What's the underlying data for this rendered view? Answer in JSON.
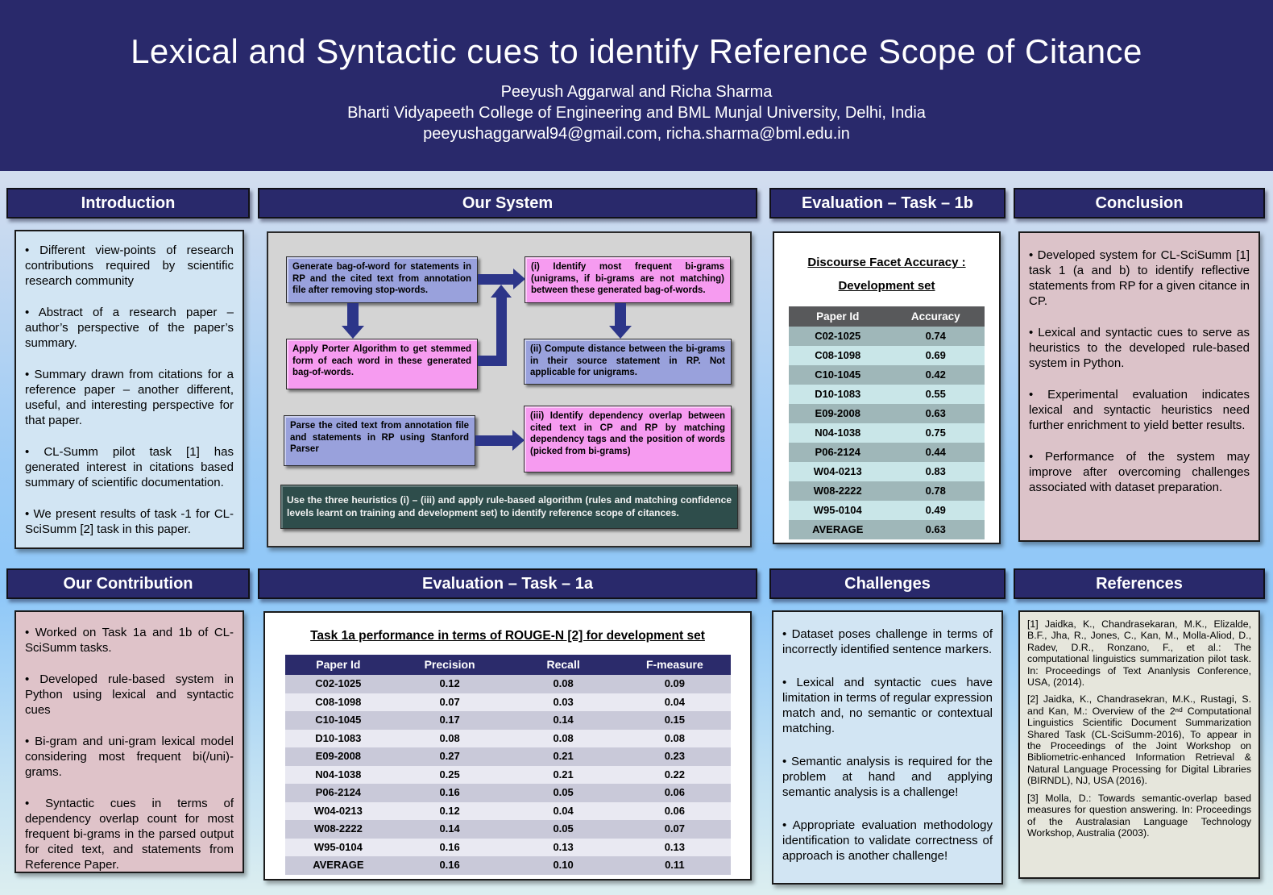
{
  "header": {
    "title": "Lexical and Syntactic cues to identify Reference Scope of Citance",
    "authors": "Peeyush Aggarwal  and Richa Sharma",
    "affiliation": "Bharti Vidyapeeth College of Engineering and  BML Munjal University, Delhi, India",
    "emails": "peeyushaggarwal94@gmail.com, richa.sharma@bml.edu.in"
  },
  "introduction": {
    "title": "Introduction",
    "bullets": [
      "• Different view-points of research contributions required by scientific research community",
      "• Abstract of a research paper – author’s perspective of the paper’s summary.",
      "• Summary drawn from citations for a reference paper – another different, useful, and interesting perspective for that paper.",
      "• CL-Summ pilot task [1] has generated interest in citations based summary of scientific documentation.",
      "• We present results of task -1 for CL-SciSumm [2] task in this paper."
    ]
  },
  "our_system": {
    "title": "Our System",
    "steps_left": [
      "Generate bag-of-word for statements in RP and the cited text from annotation file after removing stop-words.",
      "Apply Porter Algorithm to get stemmed form of each word in these generated bag-of-words.",
      "Parse the cited text from annotation file and statements in RP using Stanford Parser"
    ],
    "steps_right": [
      "(i) Identify most frequent bi-grams (unigrams, if bi-grams are not matching) between these generated bag-of-words.",
      "(ii) Compute distance between the bi-grams in their source statement in RP. Not applicable for unigrams.",
      "(iii) Identify dependency overlap between cited text in CP and RP by matching dependency tags and the position of words (picked from bi-grams)"
    ],
    "final_note": "Use the three heuristics (i) – (iii) and apply rule-based algorithm (rules and matching confidence levels learnt on training and development set) to identify reference scope of citances."
  },
  "evaluation_1b": {
    "title": "Evaluation – Task – 1b",
    "subtitle_line1": "Discourse Facet Accuracy :",
    "subtitle_line2": "Development set",
    "columns": [
      "Paper Id",
      "Accuracy"
    ],
    "rows": [
      {
        "id": "C02-1025",
        "accuracy": "0.74"
      },
      {
        "id": "C08-1098",
        "accuracy": "0.69"
      },
      {
        "id": "C10-1045",
        "accuracy": "0.42"
      },
      {
        "id": "D10-1083",
        "accuracy": "0.55"
      },
      {
        "id": "E09-2008",
        "accuracy": "0.63"
      },
      {
        "id": "N04-1038",
        "accuracy": "0.75"
      },
      {
        "id": "P06-2124",
        "accuracy": "0.44"
      },
      {
        "id": "W04-0213",
        "accuracy": "0.83"
      },
      {
        "id": "W08-2222",
        "accuracy": "0.78"
      },
      {
        "id": "W95-0104",
        "accuracy": "0.49"
      },
      {
        "id": "AVERAGE",
        "accuracy": "0.63"
      }
    ]
  },
  "conclusion": {
    "title": "Conclusion",
    "bullets": [
      "• Developed system for CL-SciSumm [1] task 1 (a and b) to identify reflective statements from RP for a given citance in CP.",
      "•  Lexical and syntactic cues to serve as heuristics to the developed rule-based system in Python.",
      "• Experimental evaluation indicates lexical and syntactic heuristics need further enrichment to yield better results.",
      "• Performance of the system may improve after overcoming challenges associated with dataset preparation."
    ]
  },
  "our_contribution": {
    "title": "Our Contribution",
    "bullets": [
      "• Worked on Task 1a and 1b of CL-SciSumm tasks.",
      "•  Developed rule-based system in Python using lexical and syntactic cues",
      "• Bi-gram and uni-gram lexical model considering most frequent bi(/uni)-grams.",
      "• Syntactic cues in terms of dependency overlap count for most frequent bi-grams in the parsed output for cited text, and  statements from Reference Paper."
    ]
  },
  "evaluation_1a": {
    "title": "Evaluation – Task – 1a",
    "table_title": "Task 1a performance in terms of ROUGE-N [2] for development set",
    "columns": [
      "Paper Id",
      "Precision",
      "Recall",
      "F-measure"
    ],
    "rows": [
      {
        "id": "C02-1025",
        "precision": "0.12",
        "recall": "0.08",
        "fmeasure": "0.09"
      },
      {
        "id": "C08-1098",
        "precision": "0.07",
        "recall": "0.03",
        "fmeasure": "0.04"
      },
      {
        "id": "C10-1045",
        "precision": "0.17",
        "recall": "0.14",
        "fmeasure": "0.15"
      },
      {
        "id": "D10-1083",
        "precision": "0.08",
        "recall": "0.08",
        "fmeasure": "0.08"
      },
      {
        "id": "E09-2008",
        "precision": "0.27",
        "recall": "0.21",
        "fmeasure": "0.23"
      },
      {
        "id": "N04-1038",
        "precision": "0.25",
        "recall": "0.21",
        "fmeasure": "0.22"
      },
      {
        "id": "P06-2124",
        "precision": "0.16",
        "recall": "0.05",
        "fmeasure": "0.06"
      },
      {
        "id": "W04-0213",
        "precision": "0.12",
        "recall": "0.04",
        "fmeasure": "0.06"
      },
      {
        "id": "W08-2222",
        "precision": "0.14",
        "recall": "0.05",
        "fmeasure": "0.07"
      },
      {
        "id": "W95-0104",
        "precision": "0.16",
        "recall": "0.13",
        "fmeasure": "0.13"
      },
      {
        "id": "AVERAGE",
        "precision": "0.16",
        "recall": "0.10",
        "fmeasure": "0.11"
      }
    ]
  },
  "challenges": {
    "title": "Challenges",
    "bullets": [
      "• Dataset poses challenge in terms of incorrectly identified sentence markers.",
      "• Lexical and syntactic cues have limitation in terms of regular expression match and, no semantic or contextual matching.",
      "• Semantic analysis is required for the problem at hand and applying semantic analysis is a challenge!",
      "• Appropriate evaluation methodology identification to validate correctness of approach is another challenge!"
    ]
  },
  "references": {
    "title": "References",
    "items": [
      "[1] Jaidka, K., Chandrasekaran, M.K., Elizalde, B.F., Jha, R., Jones, C., Kan, M., Molla-Aliod, D., Radev, D.R., Ronzano, F., et al.: The computational linguistics summarization pilot task. In: Proceedings of Text Ananlysis Conference, USA, (2014).",
      "[2] Jaidka, K., Chandrasekran, M.K., Rustagi, S. and Kan, M.: Overview of the 2ⁿᵈ Computational Linguistics Scientific Document Summarization Shared Task (CL-SciSumm-2016), To appear in the Proceedings of the Joint Workshop on Bibliometric-enhanced Information Retrieval & Natural Language Processing for Digital Libraries (BIRNDL), NJ, USA (2016).",
      "[3] Molla, D.: Towards semantic-overlap based measures for question answering. In: Proceedings of the Australasian Language Technology Workshop, Australia (2003)."
    ]
  },
  "colors": {
    "header_navy": "#29296b",
    "arrow_navy": "#2c3589",
    "flow_box_periwinkle": "#99a1dc",
    "flow_box_pink": "#f69bf0",
    "flow_box_teal": "#2e4d4b",
    "system_panel_gray": "#d4d4d4",
    "intro_bg": "#d2e5f3",
    "contribution_bg": "#dfc3c9",
    "conclusion_bg": "#dcc3c9",
    "challenges_bg": "#d2e5f3",
    "references_bg": "#e6e6dc",
    "table1b_header": "#58595b",
    "table1b_row_dark": "#9fb7b9",
    "table1b_row_light": "#c9e6e8",
    "table1a_header": "#2b2b6b",
    "table1a_row_dark": "#c9c9d9",
    "table1a_row_light": "#e9e9f2"
  }
}
